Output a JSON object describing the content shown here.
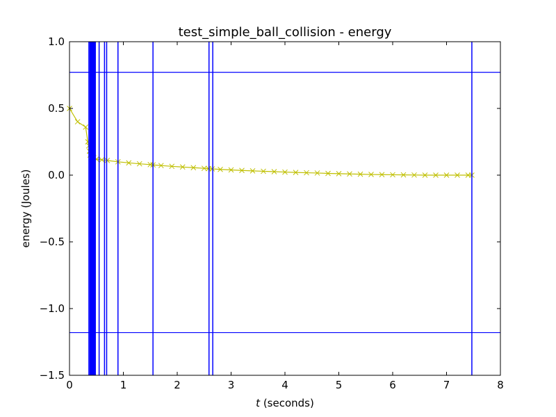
{
  "chart_data": {
    "type": "line",
    "title": "test_simple_ball_collision - energy",
    "xlabel_var": "t",
    "xlabel_rest": " (seconds)",
    "ylabel": "energy (Joules)",
    "xlim": [
      0,
      8
    ],
    "ylim": [
      -1.5,
      1.0
    ],
    "xticks": [
      0,
      1,
      2,
      3,
      4,
      5,
      6,
      7,
      8
    ],
    "xtick_labels": [
      "0",
      "1",
      "2",
      "3",
      "4",
      "5",
      "6",
      "7",
      "8"
    ],
    "yticks": [
      1.0,
      0.5,
      0.0,
      -0.5,
      -1.0,
      -1.5
    ],
    "ytick_labels": [
      "1.0",
      "0.5",
      "0.0",
      "−0.5",
      "−1.0",
      "−1.5"
    ],
    "grid": false,
    "series": [
      {
        "color": "#bfbf00",
        "marker": "x",
        "x": [
          0.0,
          0.15,
          0.3,
          0.34,
          0.36,
          0.37,
          0.38,
          0.39,
          0.4,
          0.41,
          0.42,
          0.43,
          0.44,
          0.45,
          0.5,
          0.6,
          0.7,
          0.9,
          1.1,
          1.3,
          1.5,
          1.55,
          1.7,
          1.9,
          2.1,
          2.3,
          2.5,
          2.58,
          2.65,
          2.8,
          3.0,
          3.2,
          3.4,
          3.6,
          3.8,
          4.0,
          4.2,
          4.4,
          4.6,
          4.8,
          5.0,
          5.2,
          5.4,
          5.6,
          5.8,
          6.0,
          6.2,
          6.4,
          6.6,
          6.8,
          7.0,
          7.2,
          7.4,
          7.47
        ],
        "y": [
          0.5,
          0.4,
          0.36,
          0.25,
          0.22,
          0.18,
          0.15,
          0.2,
          0.13,
          0.16,
          0.12,
          0.14,
          0.12,
          0.13,
          0.12,
          0.115,
          0.11,
          0.1,
          0.092,
          0.085,
          0.079,
          0.077,
          0.072,
          0.066,
          0.061,
          0.056,
          0.051,
          0.049,
          0.047,
          0.043,
          0.039,
          0.035,
          0.032,
          0.029,
          0.026,
          0.023,
          0.02,
          0.018,
          0.016,
          0.013,
          0.011,
          0.009,
          0.007,
          0.005,
          0.004,
          0.003,
          0.002,
          0.001,
          0.0,
          0.0,
          0.0,
          0.0,
          0.0,
          0.0
        ]
      }
    ],
    "vlines": {
      "color": "#0000ff",
      "x": [
        0.36,
        0.38,
        0.39,
        0.4,
        0.41,
        0.42,
        0.43,
        0.44,
        0.45,
        0.46,
        0.47,
        0.48,
        0.55,
        0.65,
        0.69,
        0.9,
        1.55,
        2.59,
        2.66,
        7.47
      ]
    },
    "hlines": {
      "color": "#0000ff",
      "y": [
        0.77,
        -1.18
      ]
    }
  }
}
